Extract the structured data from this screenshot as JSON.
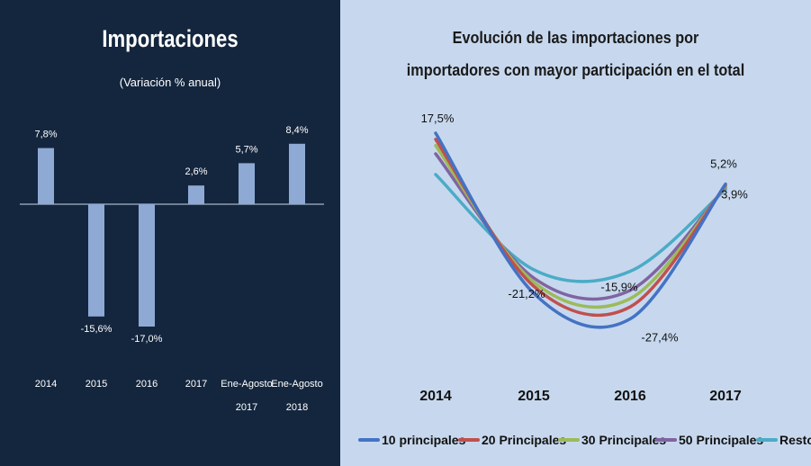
{
  "chart_data": [
    {
      "type": "bar",
      "title": "Importaciones",
      "subtitle": "(Variación % anual)",
      "categories": [
        "2014",
        "2015",
        "2016",
        "2017",
        "Ene-Agosto 2017",
        "Ene-Agosto 2018"
      ],
      "values": [
        7.8,
        -15.6,
        -17.0,
        2.6,
        5.7,
        8.4
      ],
      "data_labels": [
        "7,8%",
        "-15,6%",
        "-17,0%",
        "2,6%",
        "5,7%",
        "8,4%"
      ],
      "ylim": [
        -18,
        9
      ],
      "colors": {
        "background": "#14263e",
        "bar": "#8eaad4",
        "axis": "#c9d6ea",
        "text": "#ffffff"
      }
    },
    {
      "type": "line",
      "title": "Evolución de las importaciones por importadores con mayor participación en el total",
      "title_lines": [
        "Evolución  de las importaciones  por",
        "importadores  con mayor participación  en el total"
      ],
      "x": [
        "2014",
        "2015",
        "2016",
        "2017"
      ],
      "series": [
        {
          "name": "10 principales",
          "values": [
            17.5,
            -21.2,
            -27.4,
            5.2
          ],
          "color": "#4472c4"
        },
        {
          "name": "20 Principales",
          "values": [
            16.0,
            -19.5,
            -24.5,
            4.9
          ],
          "color": "#c0504d"
        },
        {
          "name": "30 Principales",
          "values": [
            14.5,
            -18.5,
            -22.5,
            4.6
          ],
          "color": "#9bbb59"
        },
        {
          "name": "50 Principales",
          "values": [
            12.5,
            -17.5,
            -20.5,
            4.4
          ],
          "color": "#8064a2"
        },
        {
          "name": "Resto",
          "values": [
            7.5,
            -15.5,
            -15.9,
            3.9
          ],
          "color": "#4bacc6"
        }
      ],
      "annotations": [
        {
          "text": "17,5%",
          "series": 0,
          "point": 0
        },
        {
          "text": "-21,2%",
          "series": 0,
          "point": 1
        },
        {
          "text": "-27,4%",
          "series": 0,
          "point": 2
        },
        {
          "text": "5,2%",
          "series": 0,
          "point": 3
        },
        {
          "text": "-15,9%",
          "series": 4,
          "point": 2
        },
        {
          "text": "3,9%",
          "series": 4,
          "point": 3
        }
      ],
      "legend_position": "bottom",
      "background": "#c7d8ee"
    }
  ]
}
